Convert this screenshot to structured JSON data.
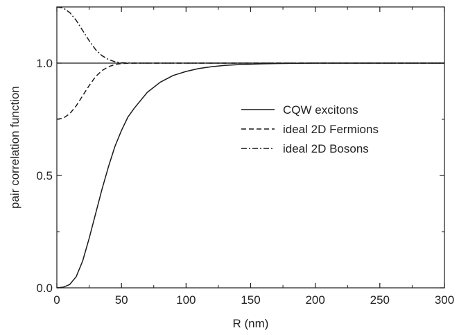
{
  "chart_data": {
    "type": "line",
    "title": "",
    "xlabel": "R (nm)",
    "ylabel": "pair correlation function",
    "xlim": [
      0,
      300
    ],
    "ylim": [
      0,
      1.25
    ],
    "xticks": [
      0,
      50,
      100,
      150,
      200,
      250,
      300
    ],
    "xtick_labels": [
      "0",
      "50",
      "100",
      "150",
      "200",
      "250",
      "300"
    ],
    "yticks": [
      0.0,
      0.5,
      1.0
    ],
    "ytick_labels": [
      "0.0",
      "0.5",
      "1.0"
    ],
    "reference_line": 1.0,
    "grid": false,
    "legend_position": "center-right",
    "series": [
      {
        "name": "CQW excitons",
        "style": "solid",
        "x": [
          0,
          5,
          10,
          15,
          20,
          25,
          30,
          35,
          40,
          45,
          50,
          55,
          60,
          70,
          80,
          90,
          100,
          110,
          120,
          130,
          140,
          150,
          160,
          170,
          180,
          200,
          220,
          250,
          300
        ],
        "y": [
          0.0,
          0.003,
          0.015,
          0.05,
          0.12,
          0.22,
          0.33,
          0.44,
          0.54,
          0.63,
          0.7,
          0.76,
          0.8,
          0.87,
          0.915,
          0.945,
          0.963,
          0.976,
          0.984,
          0.99,
          0.993,
          0.995,
          0.997,
          0.998,
          0.999,
          1.0,
          1.0,
          1.0,
          1.0
        ]
      },
      {
        "name": "ideal 2D Fermions",
        "style": "dashed",
        "x": [
          0,
          5,
          10,
          15,
          20,
          25,
          30,
          35,
          40,
          45,
          50,
          60,
          70,
          80,
          100,
          150,
          200,
          250,
          300
        ],
        "y": [
          0.75,
          0.755,
          0.775,
          0.81,
          0.855,
          0.9,
          0.94,
          0.967,
          0.984,
          0.994,
          0.998,
          1.0,
          1.0,
          1.0,
          1.0,
          1.0,
          1.0,
          1.0,
          1.0
        ]
      },
      {
        "name": "ideal 2D Bosons",
        "style": "dashdot",
        "x": [
          0,
          5,
          10,
          15,
          20,
          25,
          30,
          35,
          40,
          45,
          50,
          60,
          70,
          80,
          100,
          150,
          200,
          250,
          300
        ],
        "y": [
          1.25,
          1.245,
          1.225,
          1.19,
          1.145,
          1.1,
          1.06,
          1.033,
          1.016,
          1.006,
          1.002,
          1.0,
          1.0,
          1.0,
          1.0,
          1.0,
          1.0,
          1.0,
          1.0
        ]
      }
    ]
  },
  "colors": {
    "line": "#1a1a1a",
    "axis": "#1a1a1a",
    "background": "#ffffff"
  }
}
